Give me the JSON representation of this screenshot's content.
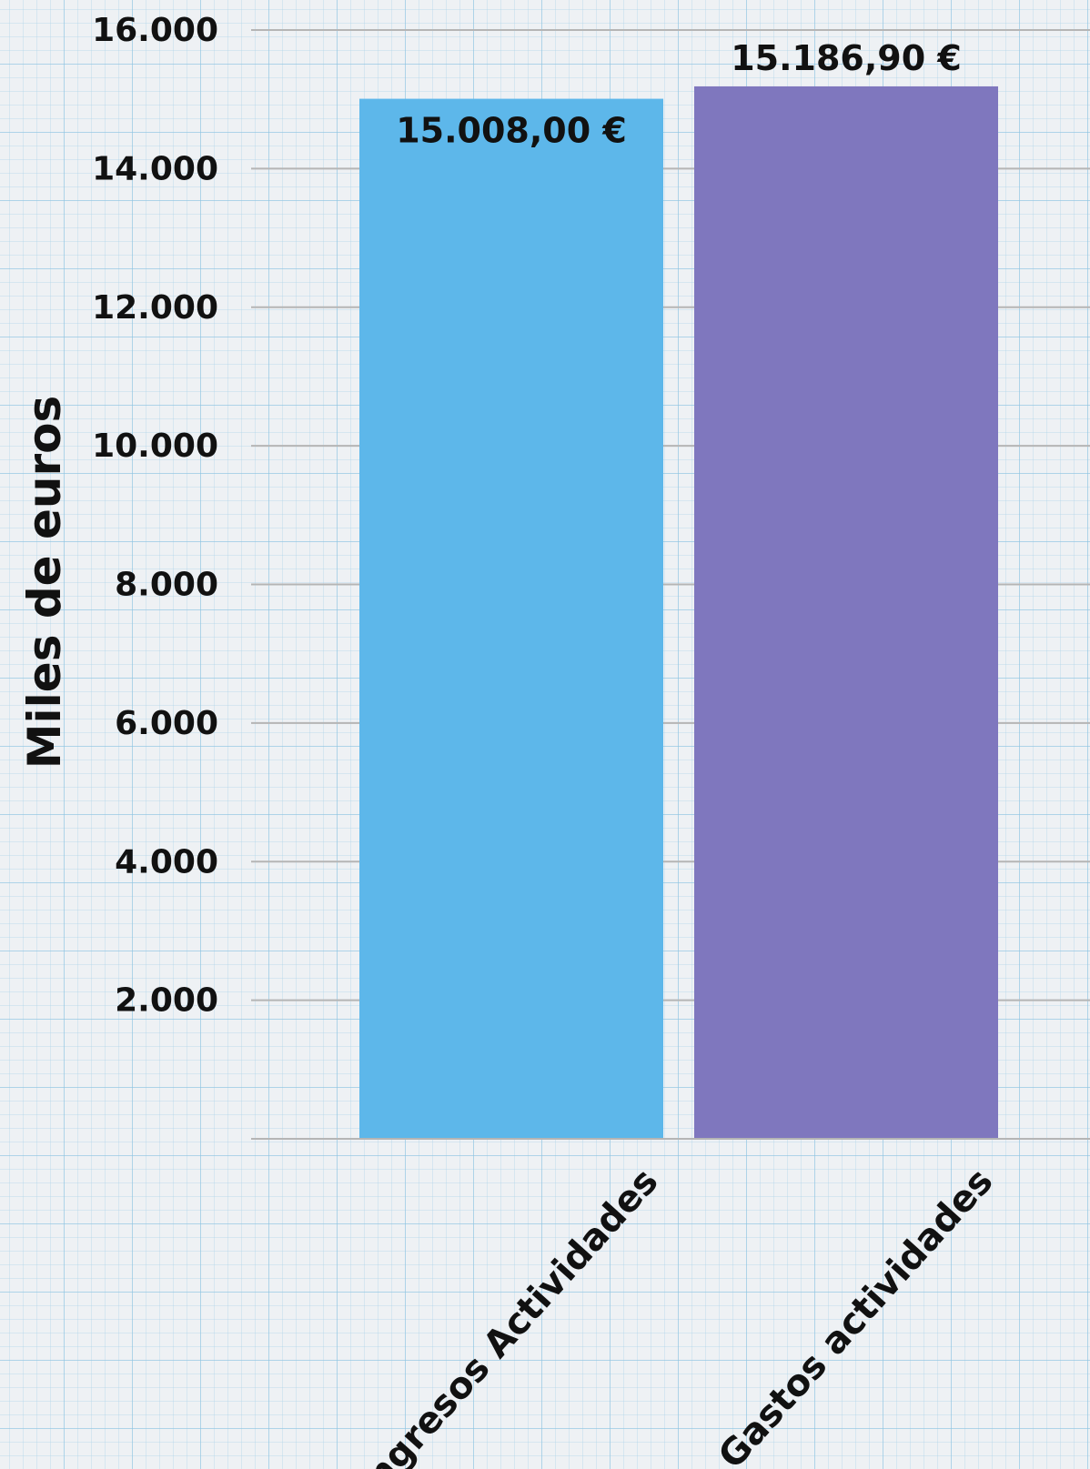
{
  "chart_data": {
    "type": "bar",
    "categories": [
      "Ingresos Actividades",
      "Gastos actividades"
    ],
    "values": [
      15008.0,
      15186.9
    ],
    "value_labels": [
      "15.008,00 €",
      "15.186,90 €"
    ],
    "colors": [
      "#5db7ea",
      "#7f77be"
    ],
    "ylabel": "Miles de euros",
    "ylim": [
      0,
      16000
    ],
    "yticks": [
      2000,
      4000,
      6000,
      8000,
      10000,
      12000,
      14000,
      16000
    ],
    "ytick_labels": [
      "2.000",
      "4.000",
      "6.000",
      "8.000",
      "10.000",
      "12.000",
      "14.000",
      "16.000"
    ],
    "grid": true,
    "legend": "none"
  }
}
